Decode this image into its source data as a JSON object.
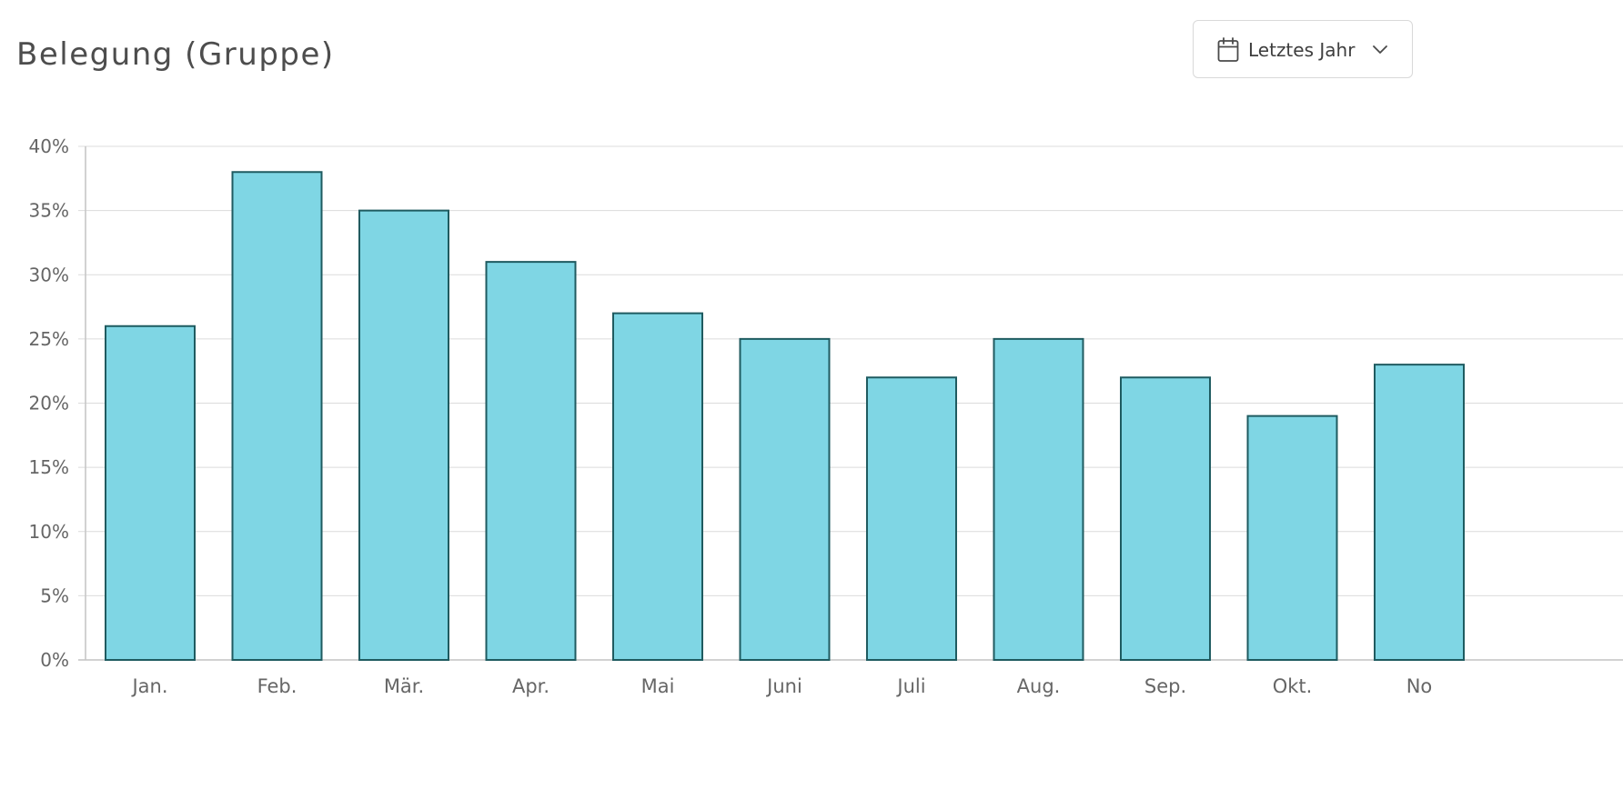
{
  "header": {
    "title": "Belegung (Gruppe)"
  },
  "range_select": {
    "selected": "Letztes Jahr",
    "icon": "calendar-icon",
    "caret_icon": "chevron-down-icon"
  },
  "colors": {
    "bar_fill": "#7fd6e4",
    "bar_stroke": "#1f5b60",
    "grid": "#dcdcdc",
    "axis": "#c4c4c4"
  },
  "chart_data": {
    "type": "bar",
    "categories": [
      "Jan.",
      "Feb.",
      "Mär.",
      "Apr.",
      "Mai",
      "Juni",
      "Juli",
      "Aug.",
      "Sep.",
      "Okt.",
      "No"
    ],
    "values": [
      26,
      38,
      35,
      31,
      27,
      25,
      22,
      25,
      22,
      19,
      23
    ],
    "value_unit": "%",
    "ylim": [
      0,
      40
    ],
    "yticks": [
      "0%",
      "5%",
      "10%",
      "15%",
      "20%",
      "25%",
      "30%",
      "35%",
      "40%"
    ],
    "title": "Belegung (Gruppe)",
    "xlabel": "",
    "ylabel": "",
    "grid": true
  }
}
